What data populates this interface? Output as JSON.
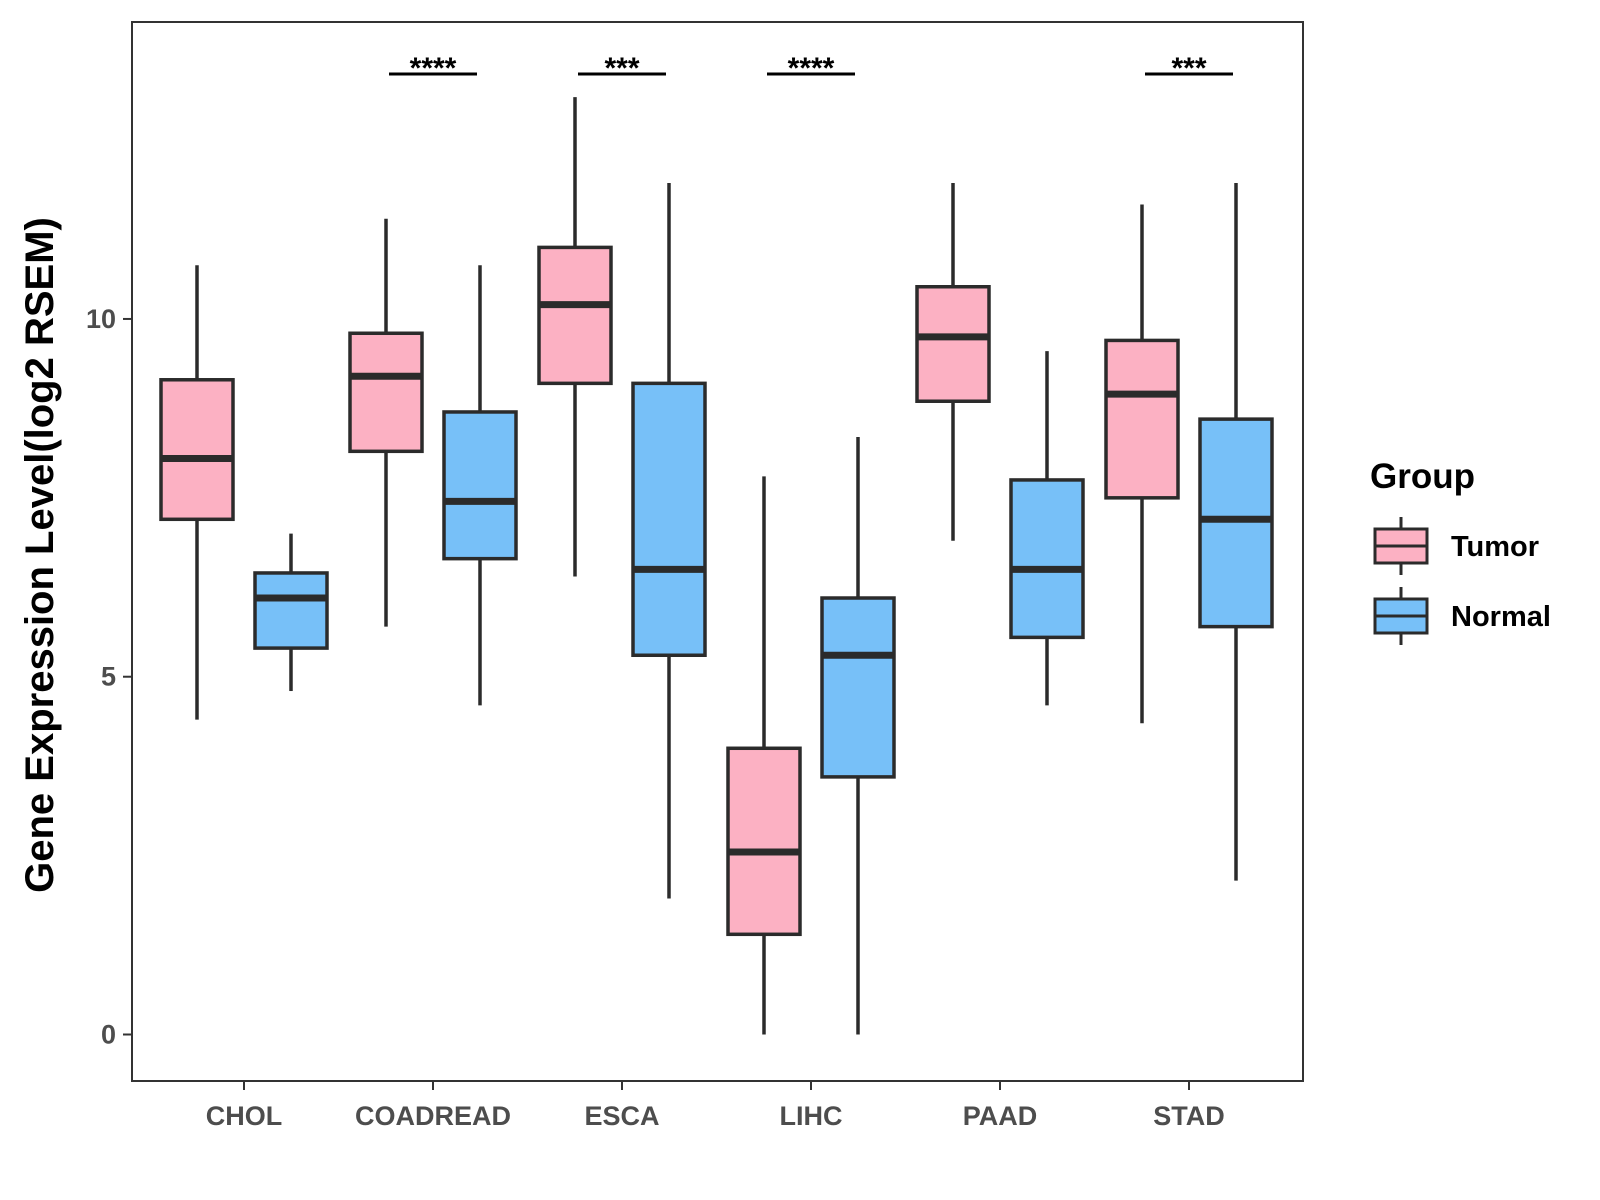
{
  "chart_data": {
    "type": "boxplot",
    "ylabel": "Gene Expression Level(log2 RSEM)",
    "xlabel": "",
    "ylim": [
      -0.65,
      14.15
    ],
    "yticks": [
      0,
      5,
      10
    ],
    "categories": [
      "CHOL",
      "COADREAD",
      "ESCA",
      "LIHC",
      "PAAD",
      "STAD"
    ],
    "legend": {
      "title": "Group",
      "position": "right",
      "entries": [
        {
          "name": "Tumor",
          "color": "#fcb1c3"
        },
        {
          "name": "Normal",
          "color": "#77c0f8"
        }
      ]
    },
    "series": [
      {
        "name": "Tumor",
        "color": "#fcb1c3",
        "boxes": [
          {
            "category": "CHOL",
            "min": 4.4,
            "q1": 7.2,
            "median": 8.05,
            "q3": 9.15,
            "max": 10.75
          },
          {
            "category": "COADREAD",
            "min": 5.7,
            "q1": 8.15,
            "median": 9.2,
            "q3": 9.8,
            "max": 11.4
          },
          {
            "category": "ESCA",
            "min": 6.4,
            "q1": 9.1,
            "median": 10.2,
            "q3": 11.0,
            "max": 13.1
          },
          {
            "category": "LIHC",
            "min": 0.0,
            "q1": 1.4,
            "median": 2.55,
            "q3": 4.0,
            "max": 7.8
          },
          {
            "category": "PAAD",
            "min": 6.9,
            "q1": 8.85,
            "median": 9.75,
            "q3": 10.45,
            "max": 11.9
          },
          {
            "category": "STAD",
            "min": 4.35,
            "q1": 7.5,
            "median": 8.95,
            "q3": 9.7,
            "max": 11.6
          }
        ]
      },
      {
        "name": "Normal",
        "color": "#77c0f8",
        "boxes": [
          {
            "category": "CHOL",
            "min": 4.8,
            "q1": 5.4,
            "median": 6.1,
            "q3": 6.45,
            "max": 7.0
          },
          {
            "category": "COADREAD",
            "min": 4.6,
            "q1": 6.65,
            "median": 7.45,
            "q3": 8.7,
            "max": 10.75
          },
          {
            "category": "ESCA",
            "min": 1.9,
            "q1": 5.3,
            "median": 6.5,
            "q3": 9.1,
            "max": 11.9
          },
          {
            "category": "LIHC",
            "min": 0.0,
            "q1": 3.6,
            "median": 5.3,
            "q3": 6.1,
            "max": 8.35
          },
          {
            "category": "PAAD",
            "min": 4.6,
            "q1": 5.55,
            "median": 6.5,
            "q3": 7.75,
            "max": 9.55
          },
          {
            "category": "STAD",
            "min": 2.15,
            "q1": 5.7,
            "median": 7.2,
            "q3": 8.6,
            "max": 11.9
          }
        ]
      }
    ],
    "significance": [
      {
        "category": "COADREAD",
        "label": "****"
      },
      {
        "category": "ESCA",
        "label": "***"
      },
      {
        "category": "LIHC",
        "label": "****"
      },
      {
        "category": "STAD",
        "label": "***"
      }
    ]
  }
}
